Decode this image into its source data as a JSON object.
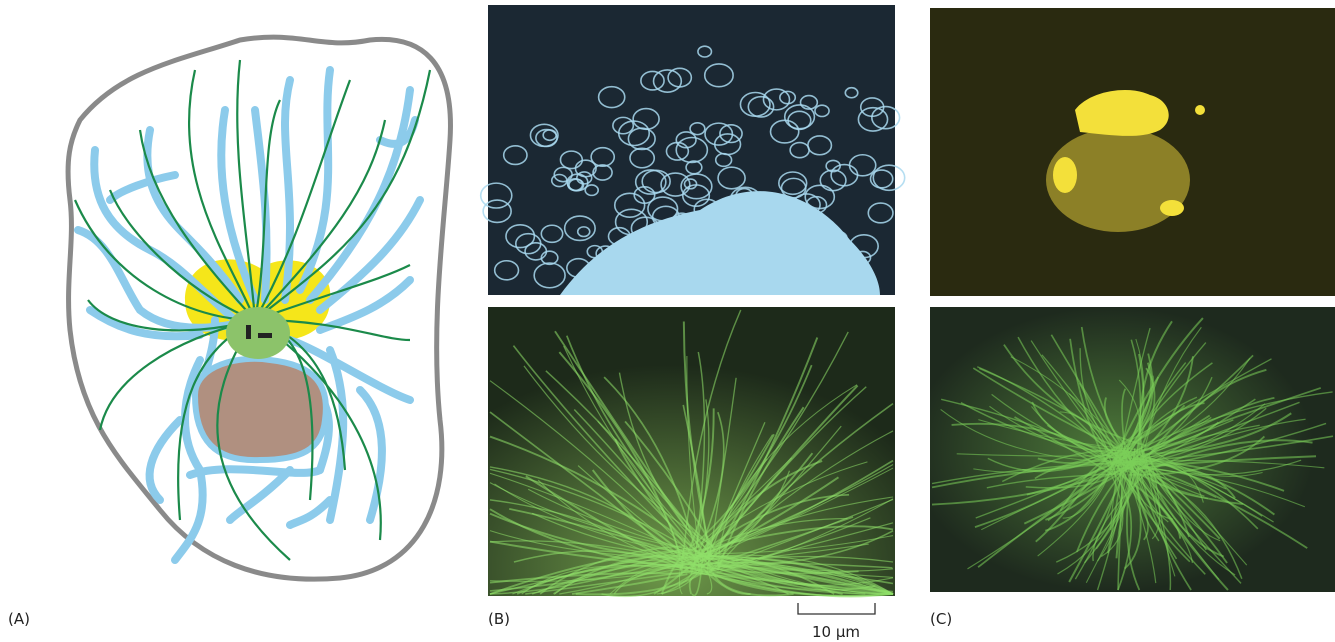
{
  "panels": {
    "a": {
      "label": "(A)"
    },
    "b": {
      "label": "(B)",
      "scale_bar": "10 μm"
    },
    "c": {
      "label": "(C)"
    }
  }
}
